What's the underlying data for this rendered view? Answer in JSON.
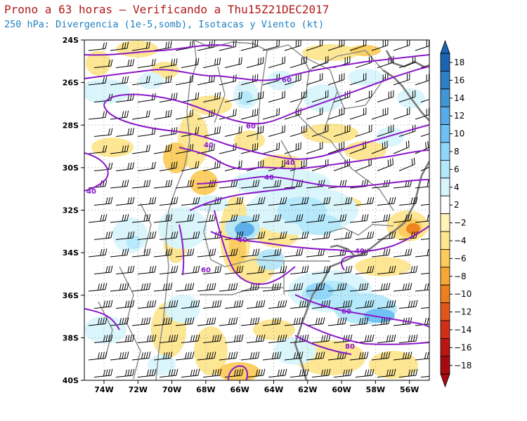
{
  "title": "Prono a 63 horas — Verificando a Thu15Z21DEC2017",
  "subtitle": "250 hPa: Divergencia (1e-5,somb), Isotacas y Viento (kt)",
  "lat_labels": [
    "24S",
    "26S",
    "28S",
    "30S",
    "32S",
    "34S",
    "36S",
    "38S",
    "40S"
  ],
  "lon_labels": [
    "74W",
    "72W",
    "70W",
    "68W",
    "66W",
    "64W",
    "62W",
    "60W",
    "58W",
    "56W"
  ],
  "colorbar": {
    "labels": [
      "18",
      "16",
      "14",
      "12",
      "10",
      "8",
      "6",
      "4",
      "2",
      "−2",
      "−4",
      "−6",
      "−8",
      "−10",
      "−12",
      "−14",
      "−16",
      "−18"
    ],
    "colors": [
      "#1a64b4",
      "#2c80c8",
      "#3f97d6",
      "#56acea",
      "#6cc0f4",
      "#8ed6fa",
      "#b4e8fb",
      "#d8f5fc",
      "#ffffff",
      "#fff5b8",
      "#fde68e",
      "#fbcc5c",
      "#f6a832",
      "#ee7f1e",
      "#e2561a",
      "#d23016",
      "#bb1512",
      "#a80a0f"
    ]
  },
  "isotach_labels": [
    "40",
    "60",
    "60",
    "40",
    "40",
    "40",
    "60",
    "40",
    "40",
    "60",
    "80"
  ],
  "colors": {
    "isotach": "#8a18c8",
    "coast": "#808080",
    "title_red": "#b01818",
    "subtitle_blue": "#1f7fbf"
  }
}
